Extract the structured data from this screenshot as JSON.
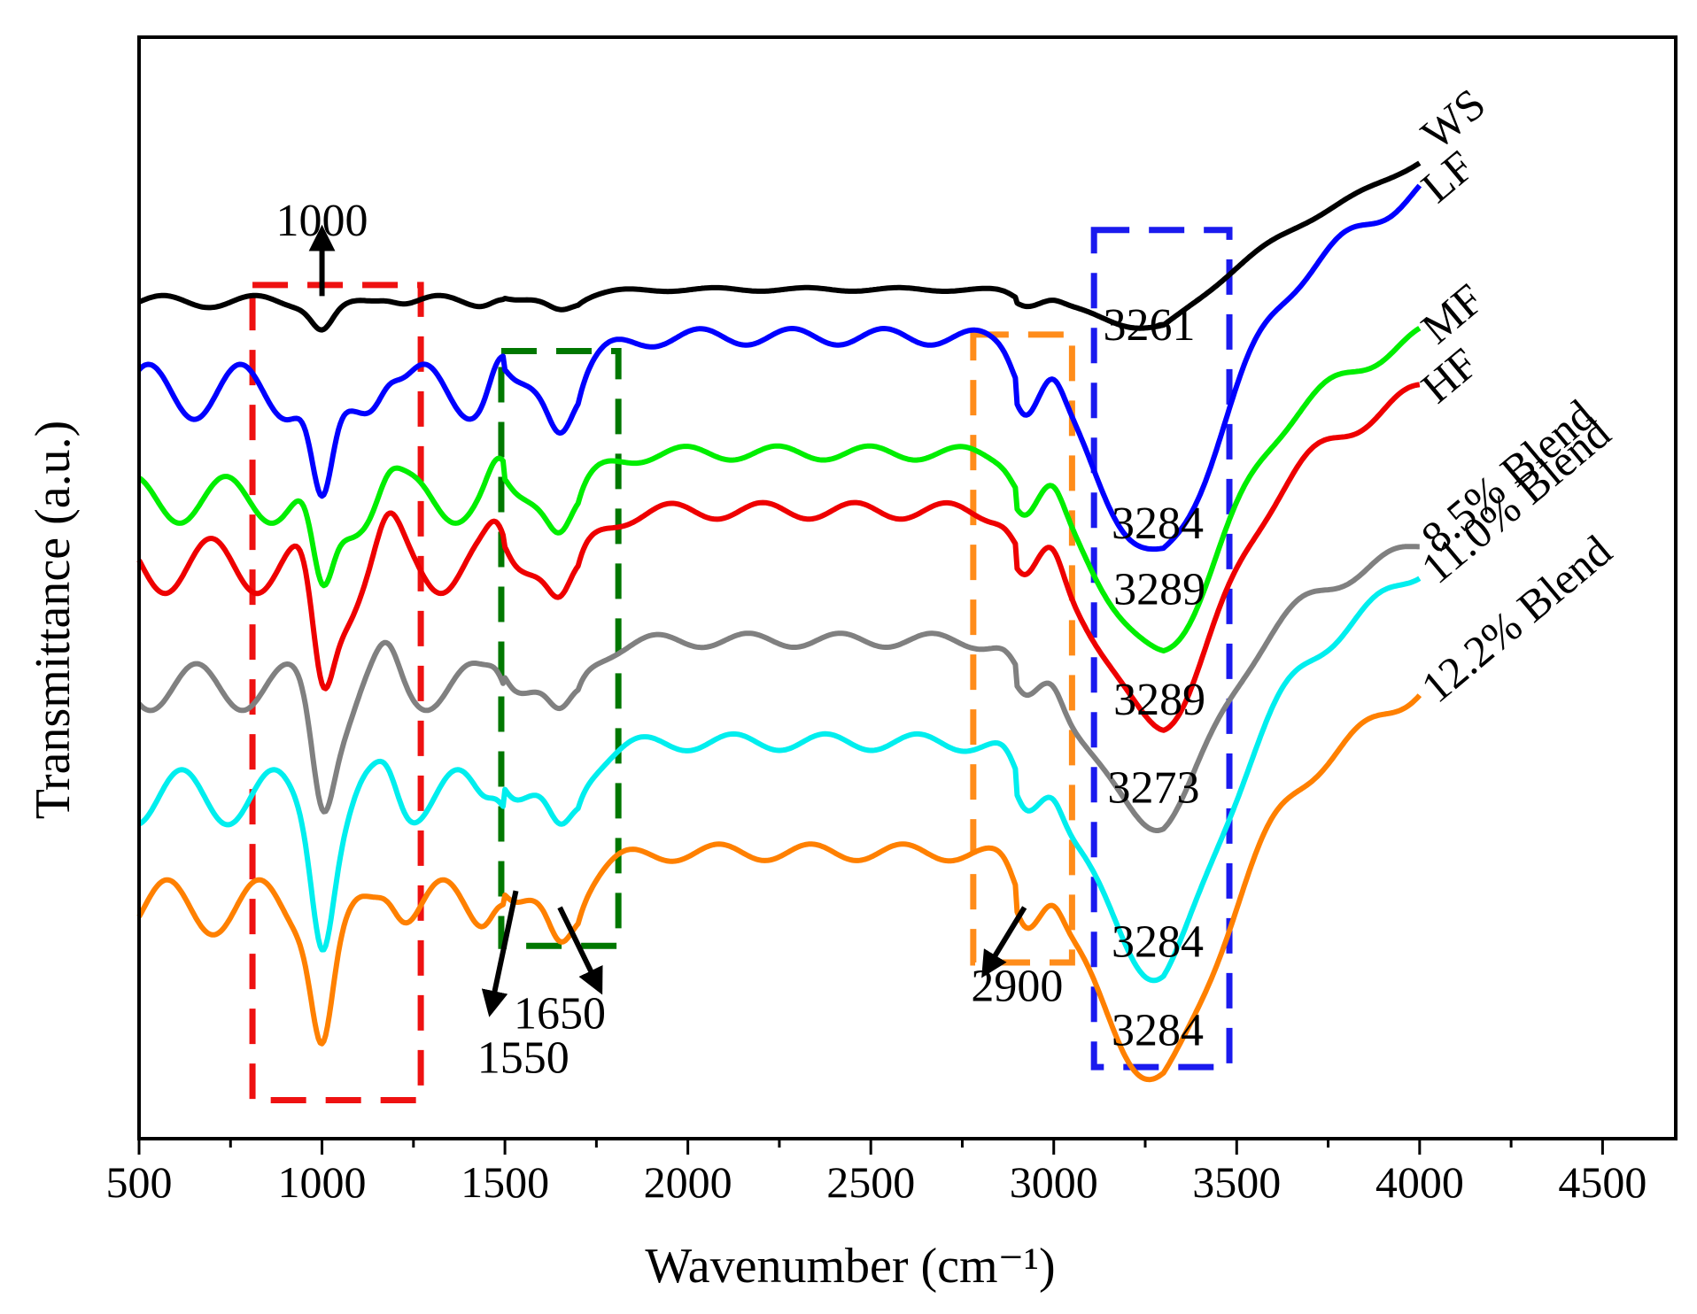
{
  "chart_data": {
    "type": "line",
    "title": "",
    "xlabel": "Wavenumber (cm⁻¹)",
    "ylabel": "Transmittance (a.u.)",
    "xlim": [
      500,
      4700
    ],
    "ylim": [
      0,
      100
    ],
    "xticks": [
      500,
      1000,
      1500,
      2000,
      2500,
      3000,
      3500,
      4000,
      4500
    ],
    "yticks_shown": false,
    "grid": false,
    "legend_placement": "inline-right",
    "colors": {
      "WS": "#000000",
      "LF": "#0000ff",
      "MF": "#00ee00",
      "HF": "#ee0000",
      "8.5% Blend": "#808080",
      "11.0% Blend": "#00eeee",
      "12.2% Blend": "#ff8000"
    },
    "series": [
      {
        "name": "WS",
        "color": "#000000",
        "base": 76.0,
        "amp": 0.22,
        "end": 88.0,
        "oh_center": 3261,
        "oh_depth": 3.0
      },
      {
        "name": "LF",
        "color": "#0000ff",
        "base": 67.8,
        "amp": 1.0,
        "end": 83.2,
        "oh_center": 3284,
        "oh_depth": 18.0
      },
      {
        "name": "MF",
        "color": "#00ee00",
        "base": 58.0,
        "amp": 0.85,
        "end": 70.4,
        "oh_center": 3289,
        "oh_depth": 16.5
      },
      {
        "name": "HF",
        "color": "#ee0000",
        "base": 52.0,
        "amp": 1.0,
        "end": 65.0,
        "oh_center": 3289,
        "oh_depth": 17.5
      },
      {
        "name": "8.5% Blend",
        "color": "#808080",
        "base": 41.0,
        "amp": 0.85,
        "end": 51.4,
        "oh_center": 3273,
        "oh_depth": 15.0
      },
      {
        "name": "11.0% Blend",
        "color": "#00eeee",
        "base": 31.0,
        "amp": 1.0,
        "end": 48.6,
        "oh_center": 3284,
        "oh_depth": 19.0
      },
      {
        "name": "12.2% Blend",
        "color": "#ff8000",
        "base": 21.0,
        "amp": 1.0,
        "end": 37.8,
        "oh_center": 3284,
        "oh_depth": 18.5
      }
    ],
    "highlight_regions": [
      {
        "color": "#ee1111",
        "x": [
          810,
          1270
        ],
        "y": [
          3.5,
          77.5
        ]
      },
      {
        "color": "#007700",
        "x": [
          1490,
          1810
        ],
        "y": [
          17.5,
          71.5
        ]
      },
      {
        "color": "#ff8c1a",
        "x": [
          2780,
          3050
        ],
        "y": [
          16.0,
          73.0
        ]
      },
      {
        "color": "#1a1aee",
        "x": [
          3110,
          3480
        ],
        "y": [
          6.5,
          82.5
        ]
      }
    ],
    "peak_labels": [
      {
        "text": "1000",
        "x": 1000,
        "y": 82
      },
      {
        "text": "1550",
        "x": 1550,
        "y": 6
      },
      {
        "text": "1650",
        "x": 1650,
        "y": 10
      },
      {
        "text": "2900",
        "x": 2900,
        "y": 12.5
      },
      {
        "text": "3261",
        "x": 3261,
        "y": 72.5
      },
      {
        "text": "3284",
        "x": 3284,
        "y": 54.5
      },
      {
        "text": "3289",
        "x": 3289,
        "y": 48.5
      },
      {
        "text": "3289",
        "x": 3289,
        "y": 38.5
      },
      {
        "text": "3273",
        "x": 3273,
        "y": 30.5
      },
      {
        "text": "3284",
        "x": 3284,
        "y": 16.5
      },
      {
        "text": "3284",
        "x": 3284,
        "y": 8.5
      }
    ],
    "annotations": [
      {
        "text": "1000",
        "from": [
          1000,
          76.5
        ],
        "to": [
          1000,
          82.5
        ]
      },
      {
        "text": "1550",
        "from": [
          1530,
          22.5
        ],
        "to": [
          1460,
          11.5
        ]
      },
      {
        "text": "1650",
        "from": [
          1650,
          21.0
        ],
        "to": [
          1760,
          13.5
        ]
      },
      {
        "text": "2900",
        "from": [
          2920,
          21.0
        ],
        "to": [
          2810,
          15.0
        ]
      }
    ]
  }
}
